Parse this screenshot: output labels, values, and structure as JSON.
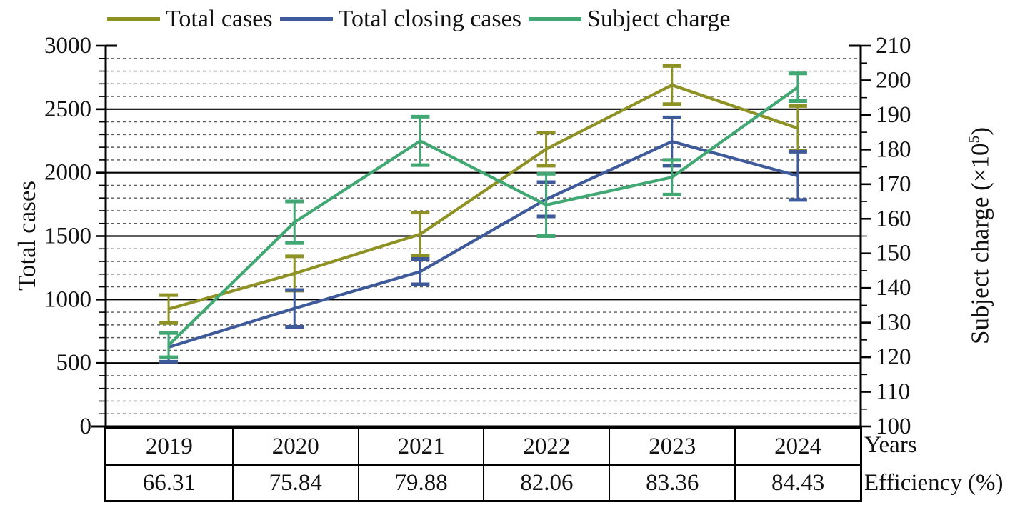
{
  "page": {
    "background": "#ffffff"
  },
  "colors": {
    "total_cases": "#8e9225",
    "total_closing_cases": "#3e5a9a",
    "subject_charge": "#42a873",
    "axis": "#000000",
    "major_grid": "#000000",
    "minor_grid": "#5a5a5a"
  },
  "chart_data": {
    "type": "line",
    "title": "",
    "legend_position": "top",
    "x_categories": [
      "2019",
      "2020",
      "2021",
      "2022",
      "2023",
      "2024"
    ],
    "series": [
      {
        "name": "Total cases",
        "axis": "left",
        "color": "#8e9225",
        "values": [
          925,
          1205,
          1515,
          2185,
          2690,
          2350
        ],
        "errors": [
          110,
          135,
          170,
          130,
          150,
          175
        ]
      },
      {
        "name": "Total closing cases",
        "axis": "left",
        "color": "#3e5a9a",
        "values": [
          625,
          930,
          1220,
          1790,
          2245,
          1975
        ],
        "errors": [
          115,
          145,
          100,
          135,
          190,
          190
        ]
      },
      {
        "name": "Subject charge",
        "axis": "right",
        "color": "#42a873",
        "values": [
          123.5,
          159,
          182.5,
          164,
          172,
          198
        ],
        "errors": [
          3.5,
          6,
          7,
          9,
          5,
          4
        ]
      }
    ],
    "left_axis": {
      "title": "Total cases",
      "min": 0,
      "max": 3000,
      "major_step": 500,
      "minor_step": 100,
      "ticks": [
        0,
        500,
        1000,
        1500,
        2000,
        2500,
        3000
      ]
    },
    "right_axis": {
      "title_pre": "Subject charge (×10",
      "title_sup": "5",
      "title_post": ")",
      "min": 100,
      "max": 210,
      "major_step": 10,
      "minor_step": 5,
      "ticks": [
        100,
        110,
        120,
        130,
        140,
        150,
        160,
        170,
        180,
        190,
        200,
        210
      ]
    },
    "x_axis": {
      "row1_label": "Years",
      "row2_label": "Efficiency (%)",
      "efficiency": [
        "66.31",
        "75.84",
        "79.88",
        "82.06",
        "83.36",
        "84.43"
      ]
    },
    "grid": {
      "major_style": "solid",
      "minor_style": "dashed",
      "minor_every_left_units": 100
    }
  }
}
